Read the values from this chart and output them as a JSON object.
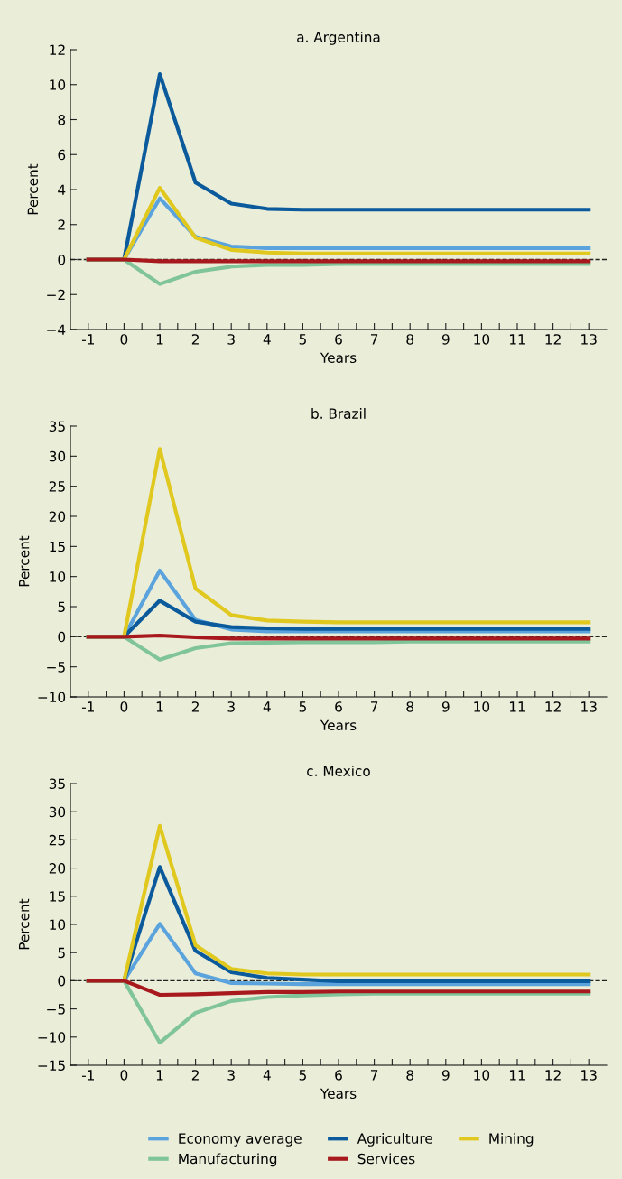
{
  "chart_data": [
    {
      "type": "line",
      "title": "a. Argentina",
      "xlabel": "Years",
      "ylabel": "Percent",
      "x": [
        -1,
        0,
        1,
        2,
        3,
        4,
        5,
        6,
        7,
        8,
        9,
        10,
        11,
        12,
        13
      ],
      "xlim": [
        -1.5,
        13.5
      ],
      "xticks": [
        -1,
        {
          "value": -0.5,
          "label": null
        },
        0,
        {
          "value": 0.5,
          "label": null
        },
        1,
        {
          "value": 1.5,
          "label": null
        },
        2,
        {
          "value": 2.5,
          "label": null
        },
        3,
        {
          "value": 3.5,
          "label": null
        },
        4,
        {
          "value": 4.5,
          "label": null
        },
        5,
        {
          "value": 5.5,
          "label": null
        },
        6,
        {
          "value": 6.5,
          "label": null
        },
        7,
        {
          "value": 7.5,
          "label": null
        },
        8,
        {
          "value": 8.5,
          "label": null
        },
        9,
        {
          "value": 9.5,
          "label": null
        },
        10,
        {
          "value": 10.5,
          "label": null
        },
        11,
        {
          "value": 11.5,
          "label": null
        },
        12,
        {
          "value": 12.5,
          "label": null
        },
        13
      ],
      "ylim": [
        -4,
        12
      ],
      "yticks": [
        {
          "value": -4,
          "label": "−4"
        },
        {
          "value": -2,
          "label": "−2"
        },
        0,
        2,
        4,
        6,
        8,
        10,
        12
      ],
      "grid": false,
      "legend": "bottom",
      "marker": "none",
      "line_style": "solid",
      "ref_lines": [
        {
          "axis": "y",
          "value": 0,
          "color": "#222222",
          "line_style": "dashed"
        }
      ],
      "series": [
        {
          "name": "Economy average",
          "color": "#5ba3dc",
          "values": [
            0,
            0,
            3.5,
            1.3,
            0.75,
            0.65,
            0.65,
            0.65,
            0.65,
            0.65,
            0.65,
            0.65,
            0.65,
            0.65,
            0.65
          ]
        },
        {
          "name": "Agriculture",
          "color": "#0a5a9c",
          "values": [
            0,
            0,
            10.6,
            4.4,
            3.2,
            2.9,
            2.85,
            2.85,
            2.85,
            2.85,
            2.85,
            2.85,
            2.85,
            2.85,
            2.85
          ]
        },
        {
          "name": "Mining",
          "color": "#e0c81f",
          "values": [
            0,
            0,
            4.1,
            1.25,
            0.55,
            0.4,
            0.35,
            0.35,
            0.35,
            0.35,
            0.35,
            0.35,
            0.35,
            0.35,
            0.35
          ]
        },
        {
          "name": "Manufacturing",
          "color": "#80c49a",
          "values": [
            0,
            0,
            -1.4,
            -0.7,
            -0.4,
            -0.3,
            -0.3,
            -0.25,
            -0.25,
            -0.25,
            -0.25,
            -0.25,
            -0.25,
            -0.25,
            -0.25
          ]
        },
        {
          "name": "Services",
          "color": "#a8191e",
          "values": [
            0,
            0,
            -0.1,
            -0.1,
            -0.1,
            -0.1,
            -0.1,
            -0.1,
            -0.1,
            -0.1,
            -0.1,
            -0.1,
            -0.1,
            -0.1,
            -0.1
          ]
        }
      ]
    },
    {
      "type": "line",
      "title": "b. Brazil",
      "xlabel": "Years",
      "ylabel": "Percent",
      "x": [
        -1,
        0,
        1,
        2,
        3,
        4,
        5,
        6,
        7,
        8,
        9,
        10,
        11,
        12,
        13
      ],
      "xlim": [
        -1.5,
        13.5
      ],
      "xticks": [
        -1,
        {
          "value": -0.5,
          "label": null
        },
        0,
        {
          "value": 0.5,
          "label": null
        },
        1,
        {
          "value": 1.5,
          "label": null
        },
        2,
        {
          "value": 2.5,
          "label": null
        },
        3,
        {
          "value": 3.5,
          "label": null
        },
        4,
        {
          "value": 4.5,
          "label": null
        },
        5,
        {
          "value": 5.5,
          "label": null
        },
        6,
        {
          "value": 6.5,
          "label": null
        },
        7,
        {
          "value": 7.5,
          "label": null
        },
        8,
        {
          "value": 8.5,
          "label": null
        },
        9,
        {
          "value": 9.5,
          "label": null
        },
        10,
        {
          "value": 10.5,
          "label": null
        },
        11,
        {
          "value": 11.5,
          "label": null
        },
        12,
        {
          "value": 12.5,
          "label": null
        },
        13
      ],
      "ylim": [
        -10,
        35
      ],
      "yticks": [
        {
          "value": -10,
          "label": "−10"
        },
        {
          "value": -5,
          "label": "−5"
        },
        0,
        5,
        10,
        15,
        20,
        25,
        30,
        35
      ],
      "grid": false,
      "legend": false,
      "marker": "none",
      "line_style": "solid",
      "ref_lines": [
        {
          "axis": "y",
          "value": 0,
          "color": "#222222",
          "line_style": "dashed"
        }
      ],
      "series": [
        {
          "color": "#5ba3dc",
          "values": [
            0,
            0,
            11,
            2.8,
            1.2,
            0.9,
            0.9,
            0.9,
            0.9,
            0.9,
            0.9,
            0.9,
            0.9,
            0.9,
            0.9
          ]
        },
        {
          "color": "#0a5a9c",
          "values": [
            0,
            0,
            6,
            2.5,
            1.6,
            1.4,
            1.3,
            1.3,
            1.3,
            1.3,
            1.3,
            1.3,
            1.3,
            1.3,
            1.3
          ]
        },
        {
          "color": "#e0c81f",
          "values": [
            0,
            0,
            31.2,
            8,
            3.6,
            2.7,
            2.5,
            2.4,
            2.4,
            2.4,
            2.4,
            2.4,
            2.4,
            2.4,
            2.4
          ]
        },
        {
          "color": "#80c49a",
          "values": [
            0,
            0,
            -3.8,
            -1.9,
            -1.1,
            -1,
            -0.9,
            -0.9,
            -0.9,
            -0.8,
            -0.8,
            -0.8,
            -0.8,
            -0.8,
            -0.8
          ]
        },
        {
          "color": "#a8191e",
          "values": [
            0,
            0,
            0.2,
            -0.1,
            -0.3,
            -0.3,
            -0.3,
            -0.3,
            -0.3,
            -0.3,
            -0.3,
            -0.3,
            -0.3,
            -0.3,
            -0.3
          ]
        }
      ]
    },
    {
      "type": "line",
      "title": "c. Mexico",
      "xlabel": "Years",
      "ylabel": "Percent",
      "x": [
        -1,
        0,
        1,
        2,
        3,
        4,
        5,
        6,
        7,
        8,
        9,
        10,
        11,
        12,
        13
      ],
      "xlim": [
        -1.5,
        13.5
      ],
      "xticks": [
        -1,
        {
          "value": -0.5,
          "label": null
        },
        0,
        {
          "value": 0.5,
          "label": null
        },
        1,
        {
          "value": 1.5,
          "label": null
        },
        2,
        {
          "value": 2.5,
          "label": null
        },
        3,
        {
          "value": 3.5,
          "label": null
        },
        4,
        {
          "value": 4.5,
          "label": null
        },
        5,
        {
          "value": 5.5,
          "label": null
        },
        6,
        {
          "value": 6.5,
          "label": null
        },
        7,
        {
          "value": 7.5,
          "label": null
        },
        8,
        {
          "value": 8.5,
          "label": null
        },
        9,
        {
          "value": 9.5,
          "label": null
        },
        10,
        {
          "value": 10.5,
          "label": null
        },
        11,
        {
          "value": 11.5,
          "label": null
        },
        12,
        {
          "value": 12.5,
          "label": null
        },
        13
      ],
      "ylim": [
        -15,
        35
      ],
      "yticks": [
        {
          "value": -15,
          "label": "−15"
        },
        {
          "value": -10,
          "label": "−10"
        },
        {
          "value": -5,
          "label": "−5"
        },
        0,
        5,
        10,
        15,
        20,
        25,
        30,
        35
      ],
      "grid": false,
      "legend": false,
      "marker": "none",
      "line_style": "solid",
      "ref_lines": [
        {
          "axis": "y",
          "value": 0,
          "color": "#222222",
          "line_style": "dashed"
        }
      ],
      "series": [
        {
          "color": "#5ba3dc",
          "values": [
            0,
            0,
            10.1,
            1.3,
            -0.4,
            -0.5,
            -0.6,
            -0.6,
            -0.6,
            -0.6,
            -0.6,
            -0.6,
            -0.6,
            -0.6,
            -0.6
          ]
        },
        {
          "color": "#0a5a9c",
          "values": [
            0,
            0,
            20.2,
            5.3,
            1.5,
            0.5,
            0.2,
            -0.1,
            -0.1,
            -0.1,
            -0.1,
            -0.1,
            -0.1,
            -0.1,
            -0.1
          ]
        },
        {
          "color": "#e0c81f",
          "values": [
            0,
            0,
            27.5,
            6.3,
            2.1,
            1.3,
            1.1,
            1.1,
            1.1,
            1.1,
            1.1,
            1.1,
            1.1,
            1.1,
            1.1
          ]
        },
        {
          "color": "#80c49a",
          "values": [
            0,
            0,
            -11,
            -5.7,
            -3.6,
            -2.9,
            -2.6,
            -2.4,
            -2.3,
            -2.3,
            -2.3,
            -2.3,
            -2.3,
            -2.3,
            -2.3
          ]
        },
        {
          "color": "#a8191e",
          "values": [
            0,
            0,
            -2.5,
            -2.4,
            -2.2,
            -2.0,
            -2.0,
            -1.9,
            -1.9,
            -1.9,
            -1.9,
            -1.9,
            -1.9,
            -1.9,
            -1.9
          ]
        }
      ]
    }
  ]
}
